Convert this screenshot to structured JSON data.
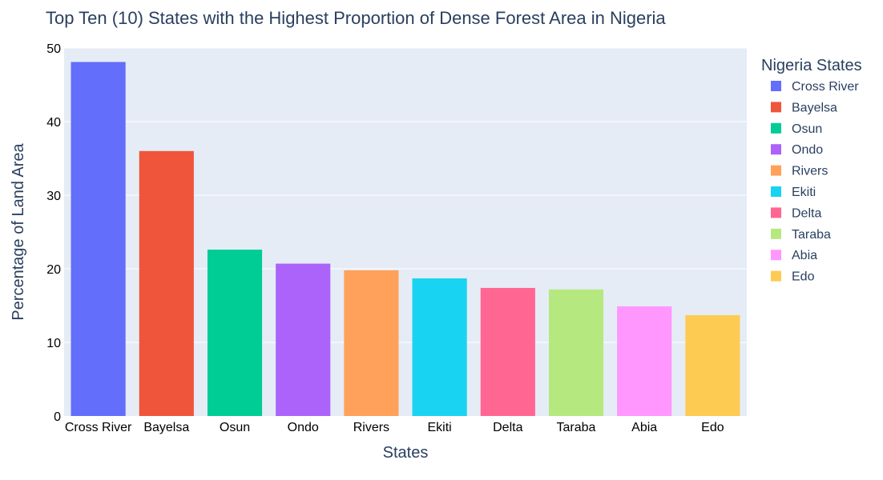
{
  "chart_data": {
    "type": "bar",
    "title": "Top Ten (10) States with the Highest Proportion of Dense Forest Area in Nigeria",
    "xlabel": "States",
    "ylabel": "Percentage of Land Area",
    "categories": [
      "Cross River",
      "Bayelsa",
      "Osun",
      "Ondo",
      "Rivers",
      "Ekiti",
      "Delta",
      "Taraba",
      "Abia",
      "Edo"
    ],
    "values": [
      48.1,
      36.0,
      22.6,
      20.7,
      19.8,
      18.7,
      17.4,
      17.2,
      14.9,
      13.7
    ],
    "colors": [
      "#636efa",
      "#EF553B",
      "#00cc96",
      "#ab63fa",
      "#FFA15A",
      "#19d3f3",
      "#FF6692",
      "#B6E880",
      "#FF97FF",
      "#FECB52"
    ],
    "ylim": [
      0,
      50
    ],
    "yticks": [
      0,
      10,
      20,
      30,
      40,
      50
    ],
    "grid": true,
    "legend": {
      "title": "Nigeria States",
      "placement": "right",
      "entries": [
        "Cross River",
        "Bayelsa",
        "Osun",
        "Ondo",
        "Rivers",
        "Ekiti",
        "Delta",
        "Taraba",
        "Abia",
        "Edo"
      ]
    }
  }
}
